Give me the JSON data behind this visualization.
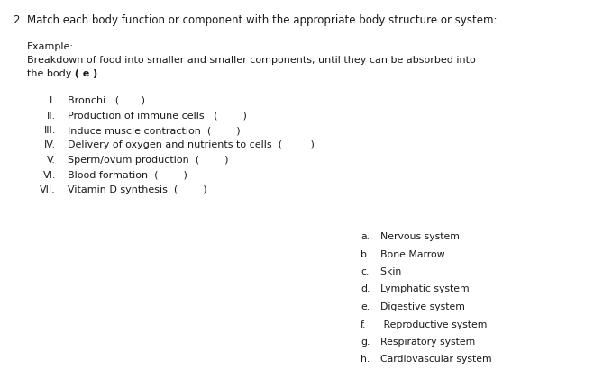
{
  "bg_color": "#ffffff",
  "question_number": "2.",
  "question_text": "Match each body function or component with the appropriate body structure or system:",
  "example_label": "Example:",
  "example_line1": "Breakdown of food into smaller and smaller components, until they can be absorbed into",
  "example_line2": "the body",
  "example_answer": "  ( e )",
  "items": [
    {
      "num": "I.",
      "text": "Bronchi   (       )"
    },
    {
      "num": "II.",
      "text": "Production of immune cells   (        )"
    },
    {
      "num": "III.",
      "text": "Induce muscle contraction  (        )"
    },
    {
      "num": "IV.",
      "text": "Delivery of oxygen and nutrients to cells  (         )"
    },
    {
      "num": "V.",
      "text": "Sperm/ovum production  (        )"
    },
    {
      "num": "VI.",
      "text": "Blood formation  (        )"
    },
    {
      "num": "VII.",
      "text": "Vitamin D synthesis  (        )"
    }
  ],
  "answers": [
    {
      "letter": "a.",
      "text": "  Nervous system"
    },
    {
      "letter": "b.",
      "text": "  Bone Marrow"
    },
    {
      "letter": "c.",
      "text": "  Skin"
    },
    {
      "letter": "d.",
      "text": "  Lymphatic system"
    },
    {
      "letter": "e.",
      "text": "  Digestive system"
    },
    {
      "letter": "f.",
      "text": "   Reproductive system"
    },
    {
      "letter": "g.",
      "text": "  Respiratory system"
    },
    {
      "letter": "h.",
      "text": "  Cardiovascular system"
    }
  ],
  "font_size_q": 8.5,
  "font_size_body": 8.0,
  "font_size_answers": 7.8
}
